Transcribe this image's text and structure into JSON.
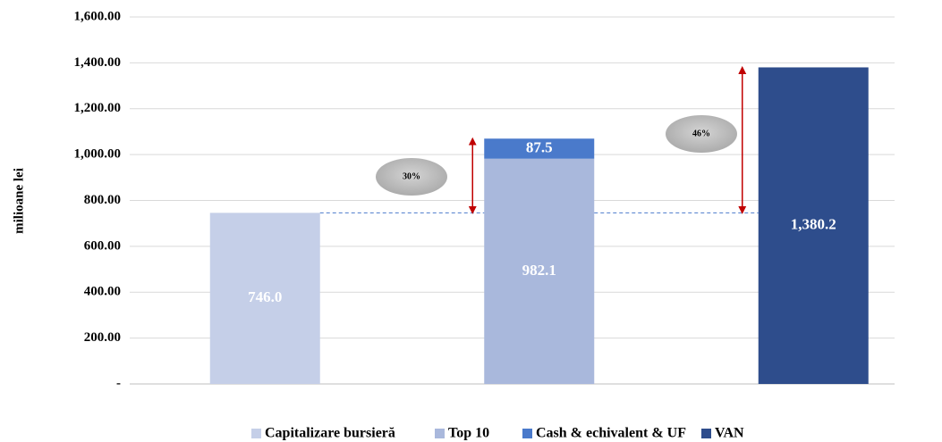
{
  "chart_data": {
    "type": "stacked_bar",
    "y_label": "milioane lei",
    "categories": [
      null,
      null,
      null
    ],
    "series": [
      {
        "name": "Capitalizare bursieră",
        "color": "#c5cfe8",
        "values": [
          746.0,
          null,
          null
        ],
        "value_labels": [
          "746.0",
          null,
          null
        ]
      },
      {
        "name": "Top 10",
        "color": "#a9b8dc",
        "values": [
          null,
          982.1,
          null
        ],
        "value_labels": [
          null,
          "982.1",
          null
        ]
      },
      {
        "name": "Cash & echivalent & UF",
        "color": "#4a7acb",
        "values": [
          null,
          87.5,
          null
        ],
        "value_labels": [
          null,
          "87.5",
          null
        ]
      },
      {
        "name": "VAN",
        "color": "#2e4d8c",
        "values": [
          null,
          null,
          1380.2
        ],
        "value_labels": [
          null,
          null,
          "1,380.2"
        ]
      }
    ],
    "annotations": [
      "30%",
      "46%"
    ],
    "ylim": [
      0,
      1600
    ],
    "yticks": [
      {
        "value": 0,
        "label": "-"
      },
      {
        "value": 200,
        "label": "200.00"
      },
      {
        "value": 400,
        "label": "400.00"
      },
      {
        "value": 600,
        "label": "600.00"
      },
      {
        "value": 800,
        "label": "800.00"
      },
      {
        "value": 1000,
        "label": "1,000.00"
      },
      {
        "value": 1200,
        "label": "1,200.00"
      },
      {
        "value": 1400,
        "label": "1,400.00"
      },
      {
        "value": 1600,
        "label": "1,600.00"
      }
    ],
    "grid": true,
    "legend": "bottom"
  }
}
